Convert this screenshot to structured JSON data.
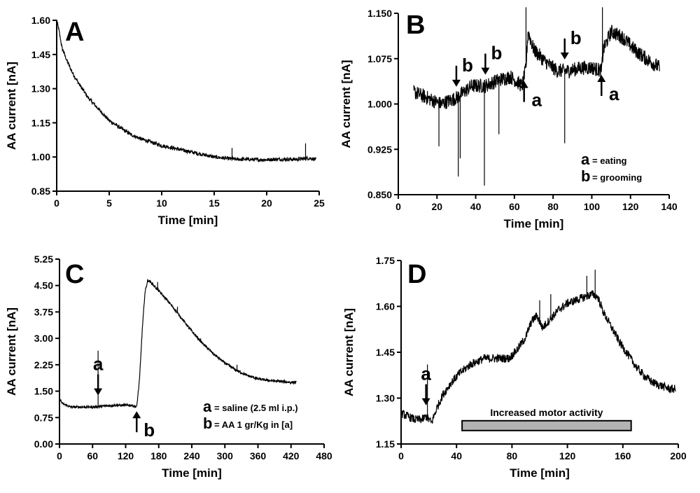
{
  "chart_data": [
    {
      "panel": "A",
      "type": "line",
      "xlabel": "Time [min]",
      "ylabel": "AA current [nA]",
      "xlim": [
        0,
        25
      ],
      "ylim": [
        0.85,
        1.6
      ],
      "xticks": [
        "0",
        "5",
        "10",
        "15",
        "20",
        "25"
      ],
      "yticks": [
        "0.85",
        "1.00",
        "1.15",
        "1.30",
        "1.45",
        "1.60"
      ],
      "series": [
        {
          "name": "AA current",
          "x": [
            0,
            0.2,
            0.5,
            1,
            1.5,
            2,
            3,
            4,
            5,
            6,
            7,
            8,
            9,
            10,
            11,
            12,
            13,
            14,
            15,
            16,
            17,
            18,
            19,
            20,
            21,
            22,
            23,
            24,
            24.7
          ],
          "y": [
            1.6,
            1.56,
            1.48,
            1.42,
            1.37,
            1.33,
            1.26,
            1.21,
            1.16,
            1.13,
            1.1,
            1.08,
            1.065,
            1.05,
            1.04,
            1.03,
            1.02,
            1.01,
            1.0,
            0.995,
            0.99,
            0.99,
            0.988,
            0.988,
            0.99,
            0.99,
            0.99,
            0.995,
            0.99
          ]
        }
      ],
      "spikes": [
        {
          "x": 16.7,
          "y": 1.04
        },
        {
          "x": 23.7,
          "y": 1.06
        }
      ],
      "noise": 0.008
    },
    {
      "panel": "B",
      "type": "line",
      "xlabel": "Time [min]",
      "ylabel": "AA current [nA]",
      "xlim": [
        0,
        140
      ],
      "ylim": [
        0.85,
        1.15
      ],
      "xticks": [
        "0",
        "20",
        "40",
        "60",
        "80",
        "100",
        "120",
        "140"
      ],
      "yticks": [
        "0.850",
        "0.925",
        "1.000",
        "1.075",
        "1.150"
      ],
      "series": [
        {
          "name": "AA current",
          "x": [
            8,
            15,
            22,
            30,
            38,
            45,
            52,
            58,
            64,
            66,
            67,
            70,
            76,
            82,
            88,
            95,
            100,
            105,
            106,
            110,
            116,
            122,
            128,
            135
          ],
          "y": [
            1.02,
            1.01,
            1.0,
            1.01,
            1.03,
            1.03,
            1.04,
            1.045,
            1.03,
            1.06,
            1.12,
            1.09,
            1.07,
            1.055,
            1.055,
            1.06,
            1.06,
            1.055,
            1.09,
            1.12,
            1.11,
            1.09,
            1.075,
            1.06
          ]
        }
      ],
      "spikes": [
        {
          "x": 21,
          "y": 0.93
        },
        {
          "x": 31,
          "y": 0.88
        },
        {
          "x": 32,
          "y": 0.91
        },
        {
          "x": 44.5,
          "y": 0.865
        },
        {
          "x": 52,
          "y": 0.95
        },
        {
          "x": 66,
          "y": 1.16
        },
        {
          "x": 86,
          "y": 0.935
        },
        {
          "x": 105.5,
          "y": 1.16
        }
      ],
      "noise": 0.012,
      "events": [
        {
          "label": "b",
          "x": 30,
          "from": "above"
        },
        {
          "label": "b",
          "x": 45,
          "from": "above"
        },
        {
          "label": "a",
          "x": 65,
          "from": "below"
        },
        {
          "label": "b",
          "x": 86,
          "from": "above"
        },
        {
          "label": "a",
          "x": 105,
          "from": "below"
        }
      ],
      "legend": [
        {
          "key": "a",
          "text": "= eating"
        },
        {
          "key": "b",
          "text": "= grooming"
        }
      ]
    },
    {
      "panel": "C",
      "type": "line",
      "xlabel": "Time [min]",
      "ylabel": "AA current [nA]",
      "xlim": [
        0,
        480
      ],
      "ylim": [
        0,
        5.25
      ],
      "xticks": [
        "0",
        "60",
        "120",
        "180",
        "240",
        "300",
        "360",
        "420",
        "480"
      ],
      "yticks": [
        "0.00",
        "0.75",
        "1.50",
        "2.25",
        "3.00",
        "3.75",
        "4.50",
        "5.25"
      ],
      "series": [
        {
          "name": "AA current",
          "x": [
            0,
            5,
            20,
            60,
            100,
            130,
            140,
            145,
            150,
            155,
            160,
            165,
            180,
            200,
            220,
            240,
            260,
            280,
            300,
            320,
            340,
            360,
            380,
            400,
            420,
            430
          ],
          "y": [
            1.3,
            1.15,
            1.05,
            1.05,
            1.1,
            1.1,
            1.05,
            1.8,
            3.2,
            4.3,
            4.65,
            4.6,
            4.35,
            4.0,
            3.6,
            3.2,
            2.85,
            2.55,
            2.3,
            2.1,
            1.95,
            1.85,
            1.8,
            1.78,
            1.75,
            1.75
          ]
        }
      ],
      "spikes": [
        {
          "x": 70,
          "y": 2.65
        },
        {
          "x": 178,
          "y": 4.6
        },
        {
          "x": 214,
          "y": 3.9
        },
        {
          "x": 256,
          "y": 3.0
        },
        {
          "x": 322,
          "y": 2.25
        }
      ],
      "noise": 0.035,
      "events": [
        {
          "label": "a",
          "x": 70,
          "from": "above"
        },
        {
          "label": "b",
          "x": 140,
          "from": "below"
        }
      ],
      "legend": [
        {
          "key": "a",
          "text": "= saline (2.5 ml i.p.)"
        },
        {
          "key": "b",
          "text": "= AA 1 gr/Kg in [a]"
        }
      ]
    },
    {
      "panel": "D",
      "type": "line",
      "xlabel": "Time [min]",
      "ylabel": "AA current [nA]",
      "xlim": [
        0,
        200
      ],
      "ylim": [
        1.15,
        1.75
      ],
      "xticks": [
        "0",
        "40",
        "80",
        "120",
        "160",
        "200"
      ],
      "yticks": [
        "1.15",
        "1.30",
        "1.45",
        "1.60",
        "1.75"
      ],
      "series": [
        {
          "name": "AA current",
          "x": [
            0,
            5,
            10,
            15,
            18,
            22,
            26,
            30,
            36,
            42,
            50,
            60,
            70,
            78,
            84,
            90,
            94,
            98,
            102,
            108,
            114,
            120,
            126,
            132,
            138,
            142,
            146,
            152,
            158,
            164,
            170,
            176,
            182,
            188,
            194,
            198
          ],
          "y": [
            1.25,
            1.24,
            1.23,
            1.23,
            1.24,
            1.22,
            1.27,
            1.31,
            1.35,
            1.38,
            1.41,
            1.43,
            1.43,
            1.43,
            1.46,
            1.5,
            1.55,
            1.57,
            1.53,
            1.56,
            1.59,
            1.61,
            1.62,
            1.63,
            1.64,
            1.63,
            1.58,
            1.53,
            1.48,
            1.44,
            1.4,
            1.37,
            1.35,
            1.34,
            1.33,
            1.33
          ]
        }
      ],
      "spikes": [
        {
          "x": 19,
          "y": 1.41
        },
        {
          "x": 100,
          "y": 1.62
        },
        {
          "x": 108,
          "y": 1.64
        },
        {
          "x": 134,
          "y": 1.7
        },
        {
          "x": 140,
          "y": 1.72
        }
      ],
      "noise": 0.014,
      "events": [
        {
          "label": "a",
          "x": 18,
          "from": "above"
        }
      ],
      "bar": {
        "label": "Increased motor activity",
        "x_start": 44,
        "x_end": 166,
        "y": 1.21
      }
    }
  ]
}
